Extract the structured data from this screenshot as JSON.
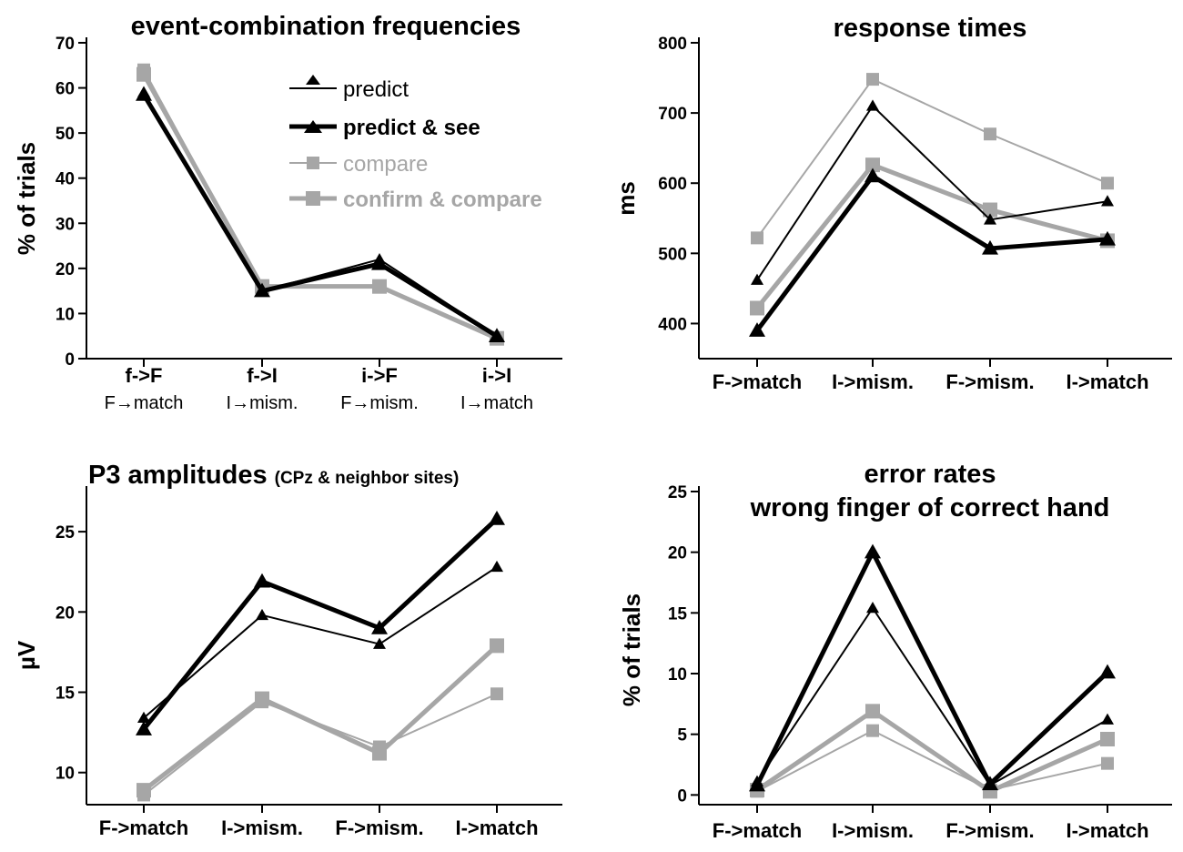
{
  "colors": {
    "black": "#000000",
    "gray": "#a6a6a6"
  },
  "legend": [
    {
      "label": "predict",
      "color": "#000000",
      "width": 2,
      "marker": "triangle",
      "bold": false
    },
    {
      "label": "predict & see",
      "color": "#000000",
      "width": 5,
      "marker": "triangle",
      "bold": true
    },
    {
      "label": "compare",
      "color": "#a6a6a6",
      "width": 2,
      "marker": "square",
      "bold": false
    },
    {
      "label": "confirm & compare",
      "color": "#a6a6a6",
      "width": 5,
      "marker": "square",
      "bold": true
    }
  ],
  "chart_data": [
    {
      "id": "freq",
      "type": "line",
      "title": "event-combination frequencies",
      "ylabel": "% of trials",
      "ylim": [
        0,
        70
      ],
      "yticks": [
        0,
        10,
        20,
        30,
        40,
        50,
        60,
        70
      ],
      "categories": [
        "f->F",
        "f->I",
        "i->F",
        "i->I"
      ],
      "categories2": [
        "F→match",
        "I→mism.",
        "F→mism.",
        "I→match"
      ],
      "series": [
        {
          "name": "predict",
          "values": [
            59,
            15,
            22,
            5
          ]
        },
        {
          "name": "predict & see",
          "values": [
            58.5,
            15,
            21,
            5
          ]
        },
        {
          "name": "compare",
          "values": [
            64,
            16,
            16,
            4.5
          ]
        },
        {
          "name": "confirm & compare",
          "values": [
            63,
            16,
            16,
            4.5
          ]
        }
      ]
    },
    {
      "id": "rt",
      "type": "line",
      "title": "response times",
      "ylabel": "ms",
      "ylim": [
        350,
        800
      ],
      "yticks": [
        400,
        500,
        600,
        700,
        800
      ],
      "categories": [
        "F->match",
        "I->mism.",
        "F->mism.",
        "I->match"
      ],
      "series": [
        {
          "name": "predict",
          "values": [
            462,
            710,
            548,
            574
          ]
        },
        {
          "name": "predict & see",
          "values": [
            390,
            610,
            507,
            520
          ]
        },
        {
          "name": "compare",
          "values": [
            522,
            748,
            670,
            600
          ]
        },
        {
          "name": "confirm & compare",
          "values": [
            422,
            626,
            562,
            518
          ]
        }
      ]
    },
    {
      "id": "p3",
      "type": "line",
      "title": "P3 amplitudes",
      "title_suffix": "(CPz & neighbor sites)",
      "ylabel": "µV",
      "ylim": [
        8,
        27.5
      ],
      "yticks": [
        10,
        15,
        20,
        25
      ],
      "categories": [
        "F->match",
        "I->mism.",
        "F->mism.",
        "I->match"
      ],
      "series": [
        {
          "name": "predict",
          "values": [
            13.4,
            19.8,
            18,
            22.8
          ]
        },
        {
          "name": "predict & see",
          "values": [
            12.7,
            21.9,
            19,
            25.8
          ]
        },
        {
          "name": "compare",
          "values": [
            8.6,
            14.4,
            11.6,
            14.9
          ]
        },
        {
          "name": "confirm & compare",
          "values": [
            8.9,
            14.6,
            11.2,
            17.9
          ]
        }
      ]
    },
    {
      "id": "err",
      "type": "line",
      "title": "error rates",
      "title2": "wrong finger of correct hand",
      "ylabel": "% of trials",
      "ylim": [
        -0.8,
        25
      ],
      "yticks": [
        0,
        5,
        10,
        15,
        20,
        25
      ],
      "categories": [
        "F->match",
        "I->mism.",
        "F->mism.",
        "I->match"
      ],
      "series": [
        {
          "name": "predict",
          "values": [
            1.1,
            15.4,
            0.8,
            6.2
          ]
        },
        {
          "name": "predict & see",
          "values": [
            0.8,
            20,
            0.9,
            10.1
          ]
        },
        {
          "name": "compare",
          "values": [
            0.3,
            5.3,
            0.4,
            2.6
          ]
        },
        {
          "name": "confirm & compare",
          "values": [
            0.4,
            6.9,
            0.3,
            4.6
          ]
        }
      ]
    }
  ]
}
